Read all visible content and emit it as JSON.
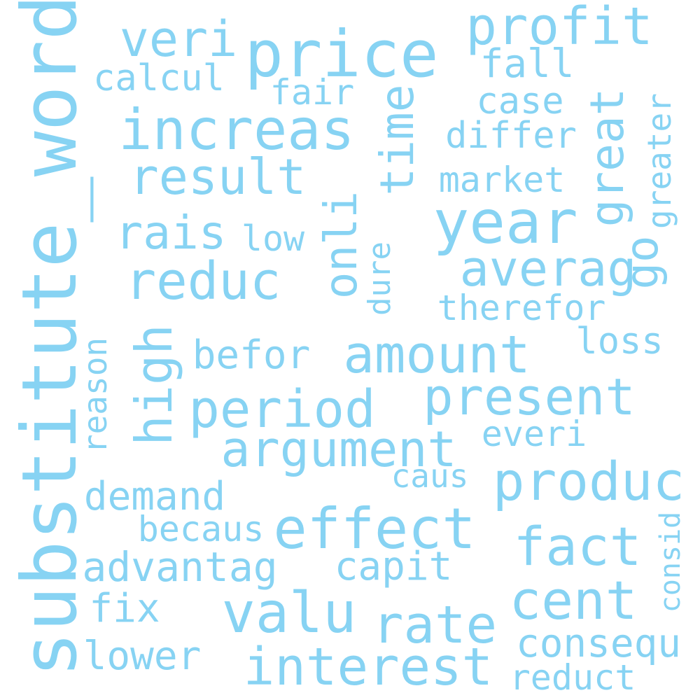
{
  "color": "#87D3F3",
  "words": {
    "substitute_word": "substitute_word",
    "price": "price",
    "veri": "veri",
    "profit": "profit",
    "calcul": "calcul",
    "fall": "fall",
    "fair": "fair",
    "case": "case",
    "increas": "increas",
    "time": "time",
    "differ": "differ",
    "great": "great",
    "greater": "greater",
    "result": "result",
    "market": "market",
    "onli": "onli",
    "year": "year",
    "rais": "rais",
    "low": "low",
    "go": "go",
    "dure": "dure",
    "averag": "averag",
    "reduc": "reduc",
    "therefor": "therefor",
    "high": "high",
    "reason": "reason",
    "loss": "loss",
    "befor": "befor",
    "amount": "amount",
    "period": "period",
    "present": "present",
    "argument": "argument",
    "everi": "everi",
    "caus": "caus",
    "produc": "produc",
    "demand": "demand",
    "becaus": "becaus",
    "effect": "effect",
    "consid": "consid",
    "fact": "fact",
    "advantag": "advantag",
    "capit": "capit",
    "fix": "fix",
    "valu": "valu",
    "cent": "cent",
    "rate": "rate",
    "consequ": "consequ",
    "lower": "lower",
    "interest": "interest",
    "reduct": "reduct"
  }
}
